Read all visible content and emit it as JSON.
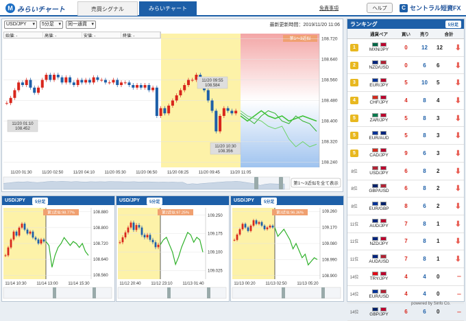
{
  "header": {
    "logo": "みらいチャート",
    "tabs": [
      {
        "label": "売買シグナル"
      },
      {
        "label": "みらいチャート"
      }
    ],
    "disclaimer_link": "免責事項",
    "help_button": "ヘルプ",
    "brand": "セントラル短資FX"
  },
  "main_chart": {
    "pair_select": "USD/JPY",
    "timeframe_select": "5分足",
    "mode_select": "同一通貨",
    "updated": "最新更新時間：2019/11/20 11:06",
    "ohlc_labels": [
      "始値: -",
      "高値: -",
      "安値: -",
      "終値: -"
    ],
    "similar_label": "第1〜3近似",
    "annotations": [
      {
        "time": "11/20 09:55",
        "price": "108.584"
      },
      {
        "time": "11/20 01:10",
        "price": "108.452"
      },
      {
        "time": "11/20 10:30",
        "price": "108.356"
      }
    ],
    "show_all_button": "第1〜3近似を全て表示"
  },
  "chart_data": [
    {
      "type": "candlestick",
      "title": "",
      "y_ticks": [
        "108.720",
        "108.640",
        "108.560",
        "108.480",
        "108.400",
        "108.320",
        "108.240"
      ],
      "ylim": [
        108.22,
        108.74
      ],
      "x_ticks": [
        "11/20 01:30",
        "11/20 02:50",
        "11/20 04:10",
        "11/20 05:30",
        "11/20 06:50",
        "11/20 08:25",
        "11/20 09:45",
        "11/20 11:05"
      ],
      "values": [
        108.47,
        108.49,
        108.52,
        108.55,
        108.54,
        108.56,
        108.53,
        108.51,
        108.53,
        108.56,
        108.58,
        108.56,
        108.58,
        108.57,
        108.55,
        108.57,
        108.55,
        108.54,
        108.56,
        108.55,
        108.56,
        108.55,
        108.57,
        108.56,
        108.56,
        108.55,
        108.55,
        108.56,
        108.54,
        108.55,
        108.55,
        108.54,
        108.53,
        108.54,
        108.53,
        108.54,
        108.52,
        108.53,
        108.42,
        108.45,
        108.43,
        108.46,
        108.48,
        108.5,
        108.52,
        108.54,
        108.56,
        108.56,
        108.58,
        108.56,
        108.52,
        108.48,
        108.44,
        108.36,
        108.42,
        108.45,
        108.44,
        108.43,
        108.44
      ],
      "forecast": [
        [
          108.43,
          108.41,
          108.39,
          108.42,
          108.44,
          108.43,
          108.4,
          108.39,
          108.42,
          108.4,
          108.39,
          108.36
        ],
        [
          108.42,
          108.4,
          108.42,
          108.44,
          108.42,
          108.41,
          108.42,
          108.4,
          108.41,
          108.42,
          108.41,
          108.4
        ],
        [
          108.44,
          108.42,
          108.41,
          108.4,
          108.38,
          108.37,
          108.38,
          108.33,
          108.3,
          108.32,
          108.3,
          108.31
        ]
      ]
    },
    {
      "type": "candlestick",
      "title": "USD/JPY",
      "timeframe": "5分足",
      "similar_label": "第1近似:98.77%",
      "y_ticks": [
        "108.880",
        "108.800",
        "108.720",
        "108.640",
        "108.560"
      ],
      "ylim": [
        108.54,
        108.9
      ],
      "x_ticks": [
        "11/14 10:30",
        "11/14 13:00",
        "11/14 15:30"
      ],
      "values": [
        108.66,
        108.7,
        108.74,
        108.78,
        108.76,
        108.8,
        108.82,
        108.79,
        108.77,
        108.78,
        108.75,
        108.74,
        108.72,
        108.74,
        108.73,
        108.71,
        108.6,
        108.66,
        108.7,
        108.72,
        108.75,
        108.73,
        108.71,
        108.73,
        108.72,
        108.7,
        108.72,
        108.68,
        108.66
      ]
    },
    {
      "type": "candlestick",
      "title": "USD/JPY",
      "timeframe": "5分足",
      "similar_label": "第2近似:97.25%",
      "y_ticks": [
        "109.250",
        "109.175",
        "109.100",
        "109.025"
      ],
      "ylim": [
        108.99,
        109.28
      ],
      "x_ticks": [
        "11/12 20:40",
        "11/12 23:10",
        "11/13 01:40"
      ],
      "values": [
        109.14,
        109.16,
        109.18,
        109.2,
        109.22,
        109.19,
        109.21,
        109.2,
        109.17,
        109.16,
        109.17,
        109.15,
        109.14,
        109.12,
        109.13,
        109.15,
        109.16,
        109.13,
        109.1,
        109.05,
        109.08,
        109.12,
        109.15,
        109.18,
        109.17,
        109.14,
        109.16,
        109.15,
        109.1
      ]
    },
    {
      "type": "candlestick",
      "title": "USD/JPY",
      "timeframe": "5分足",
      "similar_label": "第3近似:96.36%",
      "y_ticks": [
        "109.260",
        "109.170",
        "109.080",
        "108.990",
        "108.900"
      ],
      "ylim": [
        108.88,
        109.28
      ],
      "x_ticks": [
        "11/13 00:20",
        "11/13 02:50",
        "11/13 05:20"
      ],
      "values": [
        109.1,
        109.13,
        109.16,
        109.19,
        109.17,
        109.15,
        109.18,
        109.21,
        109.19,
        109.2,
        109.18,
        109.16,
        109.17,
        109.18,
        109.17,
        109.12,
        109.14,
        109.16,
        109.13,
        109.1,
        109.05,
        109.08,
        109.04,
        109.0,
        109.02,
        108.96,
        108.98,
        109.0,
        108.99
      ]
    }
  ],
  "ranking": {
    "title": "ランキング",
    "timeframe": "5分足",
    "columns": [
      "通貨ペア",
      "買い",
      "売り",
      "合計"
    ],
    "rows": [
      {
        "rank": "1",
        "pair": "MXN/JPY",
        "buy": "0",
        "sell": "12",
        "total": "12",
        "colors": [
          "#006847",
          "#bc002d"
        ]
      },
      {
        "rank": "2",
        "pair": "NZD/USD",
        "buy": "0",
        "sell": "6",
        "total": "6",
        "colors": [
          "#00247d",
          "#b22234"
        ]
      },
      {
        "rank": "3",
        "pair": "EUR/JPY",
        "buy": "5",
        "sell": "10",
        "total": "5",
        "colors": [
          "#003399",
          "#bc002d"
        ]
      },
      {
        "rank": "4",
        "pair": "CHF/JPY",
        "buy": "4",
        "sell": "8",
        "total": "4",
        "colors": [
          "#d52b1e",
          "#bc002d"
        ]
      },
      {
        "rank": "5",
        "pair": "ZAR/JPY",
        "buy": "5",
        "sell": "8",
        "total": "3",
        "colors": [
          "#007a4d",
          "#bc002d"
        ]
      },
      {
        "rank": "5",
        "pair": "EUR/AUD",
        "buy": "5",
        "sell": "8",
        "total": "3",
        "colors": [
          "#003399",
          "#00247d"
        ]
      },
      {
        "rank": "5",
        "pair": "CAD/JPY",
        "buy": "9",
        "sell": "6",
        "total": "3",
        "colors": [
          "#d52b1e",
          "#bc002d"
        ]
      },
      {
        "rank": "8位",
        "pair": "USD/JPY",
        "buy": "6",
        "sell": "8",
        "total": "2",
        "colors": [
          "#b22234",
          "#bc002d"
        ]
      },
      {
        "rank": "8位",
        "pair": "GBP/USD",
        "buy": "6",
        "sell": "8",
        "total": "2",
        "colors": [
          "#012169",
          "#b22234"
        ]
      },
      {
        "rank": "8位",
        "pair": "EUR/GBP",
        "buy": "8",
        "sell": "6",
        "total": "2",
        "colors": [
          "#003399",
          "#012169"
        ]
      },
      {
        "rank": "11位",
        "pair": "AUD/JPY",
        "buy": "7",
        "sell": "8",
        "total": "1",
        "colors": [
          "#00247d",
          "#bc002d"
        ]
      },
      {
        "rank": "11位",
        "pair": "NZD/JPY",
        "buy": "7",
        "sell": "8",
        "total": "1",
        "colors": [
          "#00247d",
          "#bc002d"
        ]
      },
      {
        "rank": "11位",
        "pair": "AUD/USD",
        "buy": "7",
        "sell": "8",
        "total": "1",
        "colors": [
          "#00247d",
          "#b22234"
        ]
      },
      {
        "rank": "14位",
        "pair": "TRY/JPY",
        "buy": "4",
        "sell": "4",
        "total": "0",
        "colors": [
          "#e30a17",
          "#bc002d"
        ]
      },
      {
        "rank": "14位",
        "pair": "EUR/USD",
        "buy": "4",
        "sell": "4",
        "total": "0",
        "colors": [
          "#003399",
          "#b22234"
        ]
      },
      {
        "rank": "14位",
        "pair": "GBP/JPY",
        "buy": "6",
        "sell": "6",
        "total": "0",
        "colors": [
          "#012169",
          "#bc002d"
        ]
      }
    ]
  },
  "footer": "powered by Sinfo Co."
}
